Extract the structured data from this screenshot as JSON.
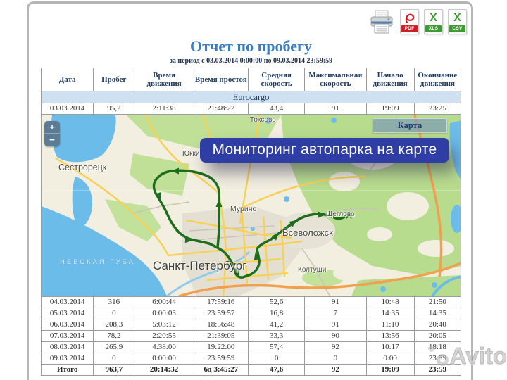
{
  "toolbar": {
    "pdf_label": "PDF",
    "xls_label": "XLS",
    "csv_label": "CSV",
    "xls_glyph": "X",
    "csv_glyph": "X"
  },
  "report": {
    "title": "Отчет по пробегу",
    "period": "за период с 03.03.2014 0:00:00 по 09.03.2014 23:59:59"
  },
  "table": {
    "columns": [
      "Дата",
      "Пробег",
      "Время движения",
      "Время простоя",
      "Средняя скорость",
      "Максимальная скорость",
      "Начало движения",
      "Окончание движения"
    ],
    "group_label": "Eurocargo",
    "rows_top": [
      [
        "03.03.2014",
        "95,2",
        "2:11:38",
        "21:48:22",
        "43,4",
        "91",
        "19:09",
        "23:25"
      ]
    ],
    "rows_bottom": [
      [
        "04.03.2014",
        "316",
        "6:00:44",
        "17:59:16",
        "52,6",
        "91",
        "10:48",
        "21:50"
      ],
      [
        "05.03.2014",
        "0",
        "0:00:03",
        "23:59:57",
        "16,8",
        "7",
        "14:35",
        "14:35"
      ],
      [
        "06.03.2014",
        "208,3",
        "5:03:12",
        "18:56:48",
        "41,2",
        "91",
        "11:10",
        "20:40"
      ],
      [
        "07.03.2014",
        "78,2",
        "2:20:55",
        "21:39:05",
        "33,3",
        "90",
        "13:56",
        "20:05"
      ],
      [
        "08.03.2014",
        "265,9",
        "4:38:00",
        "19:22:00",
        "57,4",
        "92",
        "10:17",
        "18:18"
      ],
      [
        "09.03.2014",
        "0",
        "0:00:00",
        "23:59:59",
        "0",
        "0",
        "0:00",
        "23:59"
      ]
    ],
    "total_row": [
      [
        "Итого",
        "963,7",
        "20:14:32",
        "6д 3:45:27",
        "47,6",
        "92",
        "19:09",
        "23:59"
      ]
    ]
  },
  "map": {
    "zoom_in": "+",
    "zoom_out": "−",
    "layer_button": "Карта",
    "banner": "Мониторинг автопарка на карте",
    "labels": {
      "sestroretsk": "Сестрорецк",
      "toksovo": "Токсово",
      "yukki": "Юкки",
      "murino": "Мурино",
      "vsevolozhsk": "Всеволожск",
      "scheglovo": "Щеглово",
      "koltushi": "Колтуши",
      "spb": "Санкт-Петербург",
      "nevskaya_guba": "НЕВСКАЯ ГУБА"
    },
    "colors": {
      "route": "#1c6e1c",
      "water": "#6cbcea",
      "forest": "#b8dc8e",
      "banner_bg": "#2f3ea4"
    }
  },
  "watermark": {
    "text": "Avito"
  }
}
